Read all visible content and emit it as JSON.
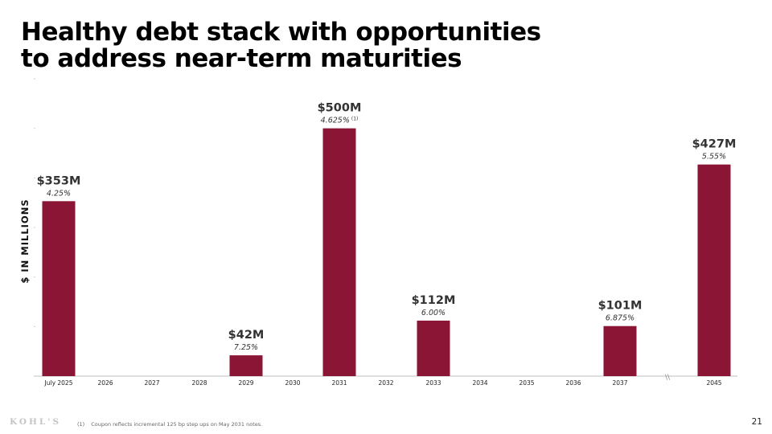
{
  "slide": {
    "title_line1": "Healthy debt stack with opportunities",
    "title_line2": "to address near-term maturities",
    "footnote_marker": "(1)",
    "footnote_text": "Coupon reflects incremental 125 bp step ups on May 2031 notes.",
    "logo_text": "KOHL'S",
    "page_number": "21"
  },
  "chart_data": {
    "type": "bar",
    "title": "",
    "xlabel": "",
    "ylabel": "$ IN MILLIONS",
    "ylim": [
      0,
      600
    ],
    "gridlines": false,
    "bar_color": "#8b1535",
    "categories": [
      "July 2025",
      "2026",
      "2027",
      "2028",
      "2029",
      "2030",
      "2031",
      "2032",
      "2033",
      "2034",
      "2035",
      "2036",
      "2037",
      "2045"
    ],
    "values": [
      353,
      0,
      0,
      0,
      42,
      0,
      500,
      0,
      112,
      0,
      0,
      0,
      101,
      427
    ],
    "value_labels": [
      "$353M",
      "",
      "",
      "",
      "$42M",
      "",
      "$500M",
      "",
      "$112M",
      "",
      "",
      "",
      "$101M",
      "$427M"
    ],
    "coupon_labels": [
      "4.25%",
      "",
      "",
      "",
      "7.25%",
      "",
      "4.625%",
      "",
      "6.00%",
      "",
      "",
      "",
      "6.875%",
      "5.55%"
    ],
    "coupon_footnote_refs": [
      "",
      "",
      "",
      "",
      "",
      "",
      "(1)",
      "",
      "",
      "",
      "",
      "",
      "",
      ""
    ],
    "axis_break_marker": "\\\\"
  }
}
